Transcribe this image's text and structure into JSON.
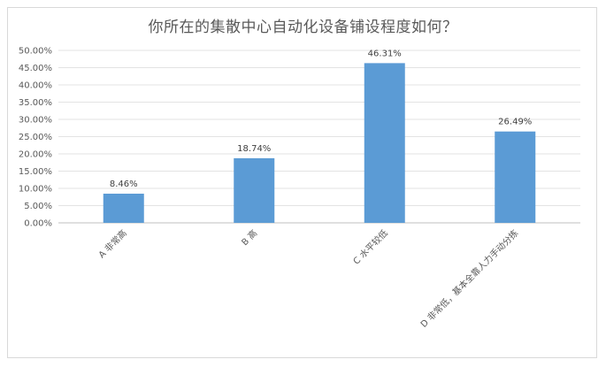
{
  "chart_data": {
    "type": "bar",
    "title": "你所在的集散中心自动化设备铺设程度如何？",
    "categories": [
      "A 非常高",
      "B 高",
      "C 水平较低",
      "D 非常低，基本全靠人力手动分拣"
    ],
    "values": [
      8.46,
      18.74,
      46.31,
      26.49
    ],
    "data_labels": [
      "8.46%",
      "18.74%",
      "46.31%",
      "26.49%"
    ],
    "ylim": [
      0,
      50
    ],
    "y_ticks": [
      "0.00%",
      "5.00%",
      "10.00%",
      "15.00%",
      "20.00%",
      "25.00%",
      "30.00%",
      "35.00%",
      "40.00%",
      "45.00%",
      "50.00%"
    ],
    "grid": true,
    "legend": "none",
    "bar_color": "#5b9bd5"
  }
}
